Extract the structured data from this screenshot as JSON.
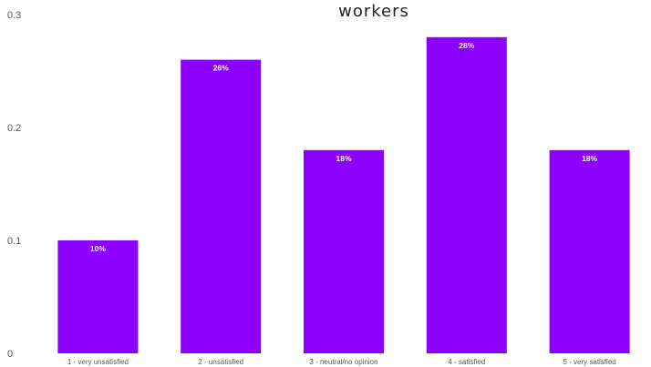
{
  "chart_data": {
    "type": "bar",
    "title": "workers",
    "categories": [
      "1 - very unsatisfied",
      "2 - unsatisfied",
      "3 - neutral/no opinion",
      "4 - satisfied",
      "5 - very satisfied"
    ],
    "values": [
      0.1,
      0.26,
      0.18,
      0.28,
      0.18
    ],
    "data_labels": [
      "10%",
      "26%",
      "18%",
      "28%",
      "18%"
    ],
    "yticks": [
      "0",
      "0.1",
      "0.2",
      "0.3"
    ],
    "ylim": [
      0,
      0.3
    ],
    "grid": false,
    "bar_color": "#8B00FF"
  }
}
